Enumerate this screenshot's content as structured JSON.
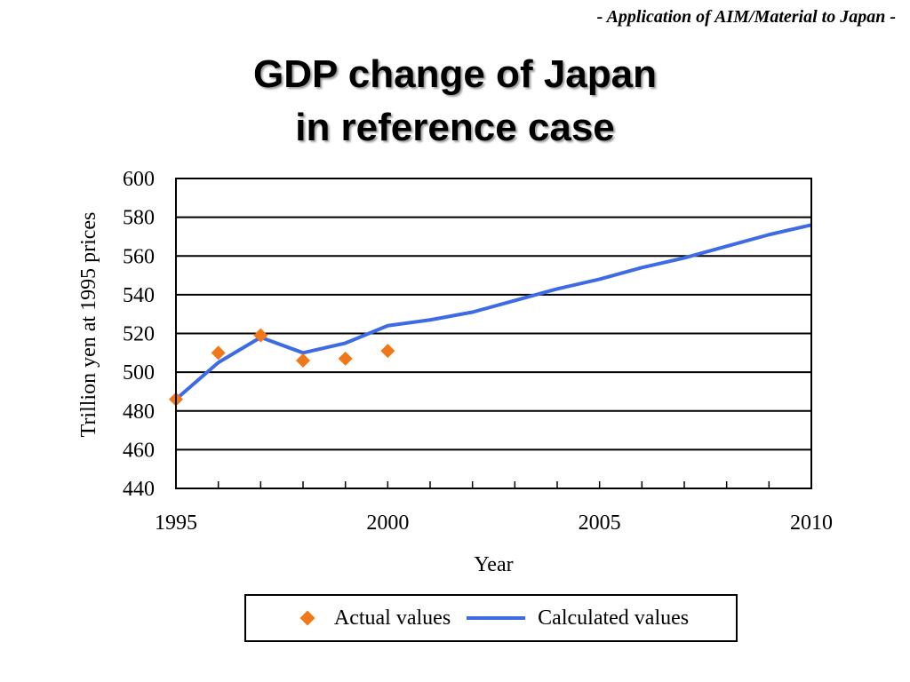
{
  "header_note": "- Application of AIM/Material to Japan -",
  "title": {
    "line1": "GDP change of Japan",
    "line2": "in reference case"
  },
  "colors": {
    "actual": "#f07818",
    "calculated": "#3d6be6"
  },
  "chart_data": {
    "type": "line",
    "xlabel": "Year",
    "ylabel": "Trillion yen at 1995 prices",
    "xlim": [
      1995,
      2010
    ],
    "ylim": [
      440,
      600
    ],
    "x_ticks": [
      1995,
      2000,
      2005,
      2010
    ],
    "y_ticks": [
      440,
      460,
      480,
      500,
      520,
      540,
      560,
      580,
      600
    ],
    "grid": "horizontal",
    "legend": "bottom",
    "series": [
      {
        "name": "Actual values",
        "marker": "diamond",
        "x": [
          1995,
          1996,
          1997,
          1998,
          1999,
          2000
        ],
        "y": [
          486,
          510,
          519,
          506,
          507,
          511
        ]
      },
      {
        "name": "Calculated values",
        "marker": "line",
        "x": [
          1995,
          1996,
          1997,
          1998,
          1999,
          2000,
          2001,
          2002,
          2003,
          2004,
          2005,
          2006,
          2007,
          2008,
          2009,
          2010
        ],
        "y": [
          486,
          505,
          518,
          510,
          515,
          524,
          527,
          531,
          537,
          543,
          548,
          554,
          559,
          565,
          571,
          576
        ]
      }
    ]
  }
}
